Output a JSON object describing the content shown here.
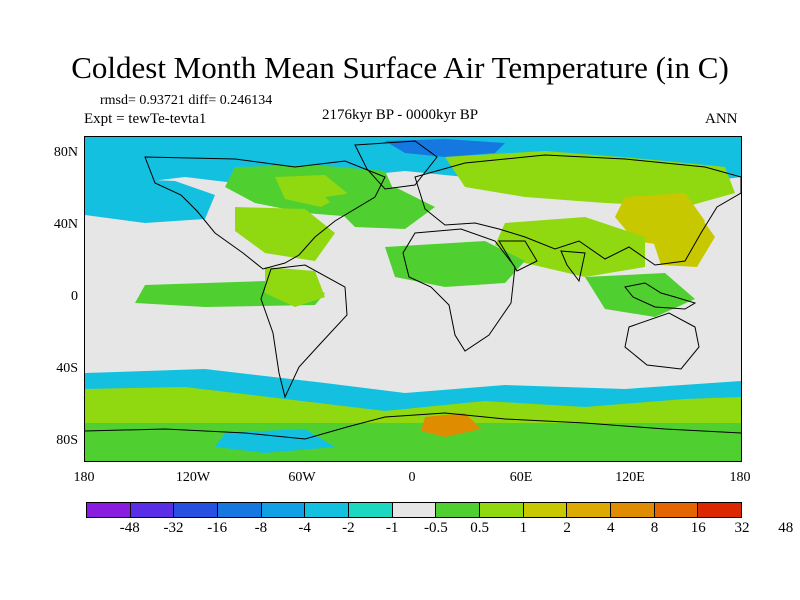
{
  "title": "Coldest Month Mean Surface Air Temperature (in C)",
  "stats": "rmsd= 0.93721 diff= 0.246134",
  "experiment": "Expt = tewTe-tevta1",
  "period": "2176kyr BP - 0000kyr BP",
  "season": "ANN",
  "map": {
    "lat_labels": [
      "80N",
      "40N",
      "0",
      "40S",
      "80S"
    ],
    "lon_labels": [
      "180",
      "120W",
      "60W",
      "0",
      "60E",
      "120E",
      "180"
    ],
    "background_color": "#e6e6e6",
    "coastline_color": "#000000"
  },
  "colorbar": {
    "colors": [
      "#8a1ce0",
      "#5a2ee6",
      "#2850e0",
      "#1478e0",
      "#10a0e6",
      "#14c0e0",
      "#1cd8c0",
      "#e6e6e6",
      "#50d030",
      "#90d810",
      "#c8c800",
      "#dcaa00",
      "#e08c00",
      "#e46400",
      "#dc2800"
    ],
    "labels": [
      "-48",
      "-32",
      "-16",
      "-8",
      "-4",
      "-2",
      "-1",
      "-0.5",
      "0.5",
      "1",
      "2",
      "4",
      "8",
      "16",
      "32",
      "48"
    ]
  }
}
